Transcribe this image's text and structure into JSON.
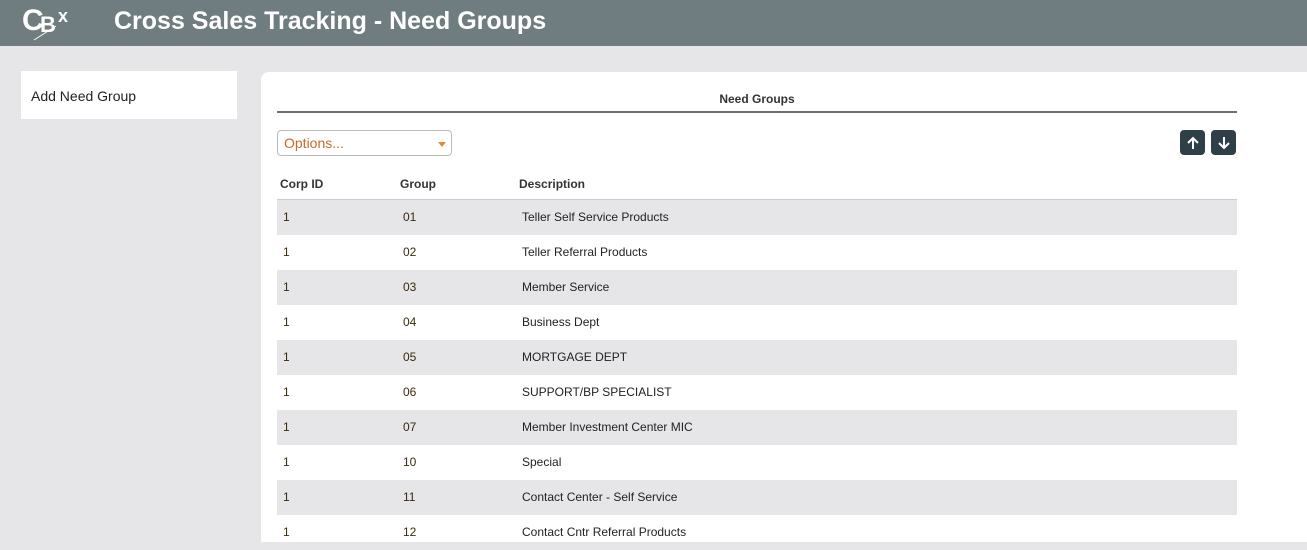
{
  "header": {
    "logo_text": "CBX",
    "title": "Cross Sales Tracking - Need Groups"
  },
  "sidebar": {
    "add_label": "Add Need Group"
  },
  "panel": {
    "title": "Need Groups",
    "options_placeholder": "Options...",
    "move_up_icon": "arrow-up-icon",
    "move_down_icon": "arrow-down-icon"
  },
  "table": {
    "headers": [
      "Corp ID",
      "Group",
      "Description"
    ],
    "rows": [
      {
        "corp": "1",
        "group": "01",
        "desc": "Teller Self Service Products"
      },
      {
        "corp": "1",
        "group": "02",
        "desc": "Teller Referral Products"
      },
      {
        "corp": "1",
        "group": "03",
        "desc": "Member Service"
      },
      {
        "corp": "1",
        "group": "04",
        "desc": "Business Dept"
      },
      {
        "corp": "1",
        "group": "05",
        "desc": "MORTGAGE DEPT"
      },
      {
        "corp": "1",
        "group": "06",
        "desc": "SUPPORT/BP SPECIALIST"
      },
      {
        "corp": "1",
        "group": "07",
        "desc": "Member Investment Center MIC"
      },
      {
        "corp": "1",
        "group": "10",
        "desc": "Special"
      },
      {
        "corp": "1",
        "group": "11",
        "desc": "Contact Center - Self Service"
      },
      {
        "corp": "1",
        "group": "12",
        "desc": "Contact Cntr Referral Products"
      }
    ]
  }
}
